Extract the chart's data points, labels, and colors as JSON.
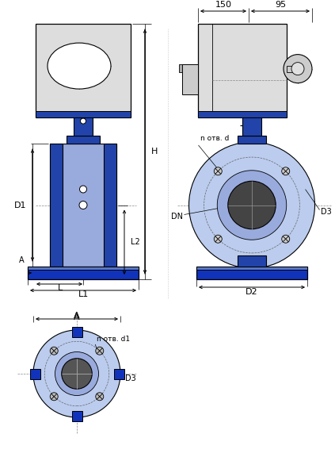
{
  "bg_color": "#ffffff",
  "line_color": "#000000",
  "blue_dark": "#2244aa",
  "blue_mid": "#5577cc",
  "blue_light": "#8899cc",
  "blue_flange": "#1133bb",
  "blue_body": "#99aadd",
  "lavender": "#bbccee",
  "gray_box": "#dddddd",
  "gray_dark": "#444444",
  "dim_150": "150",
  "dim_95": "95",
  "dim_H": "H",
  "dim_D1": "D1",
  "dim_L2": "L2",
  "dim_L": "L",
  "dim_L1": "L1",
  "dim_A": "A",
  "dim_D2": "D2",
  "dim_D3": "D3",
  "dim_DN": "DN",
  "dim_n_otv_d": "n отв. d",
  "dim_n_otv_d1": "n отв. d1"
}
